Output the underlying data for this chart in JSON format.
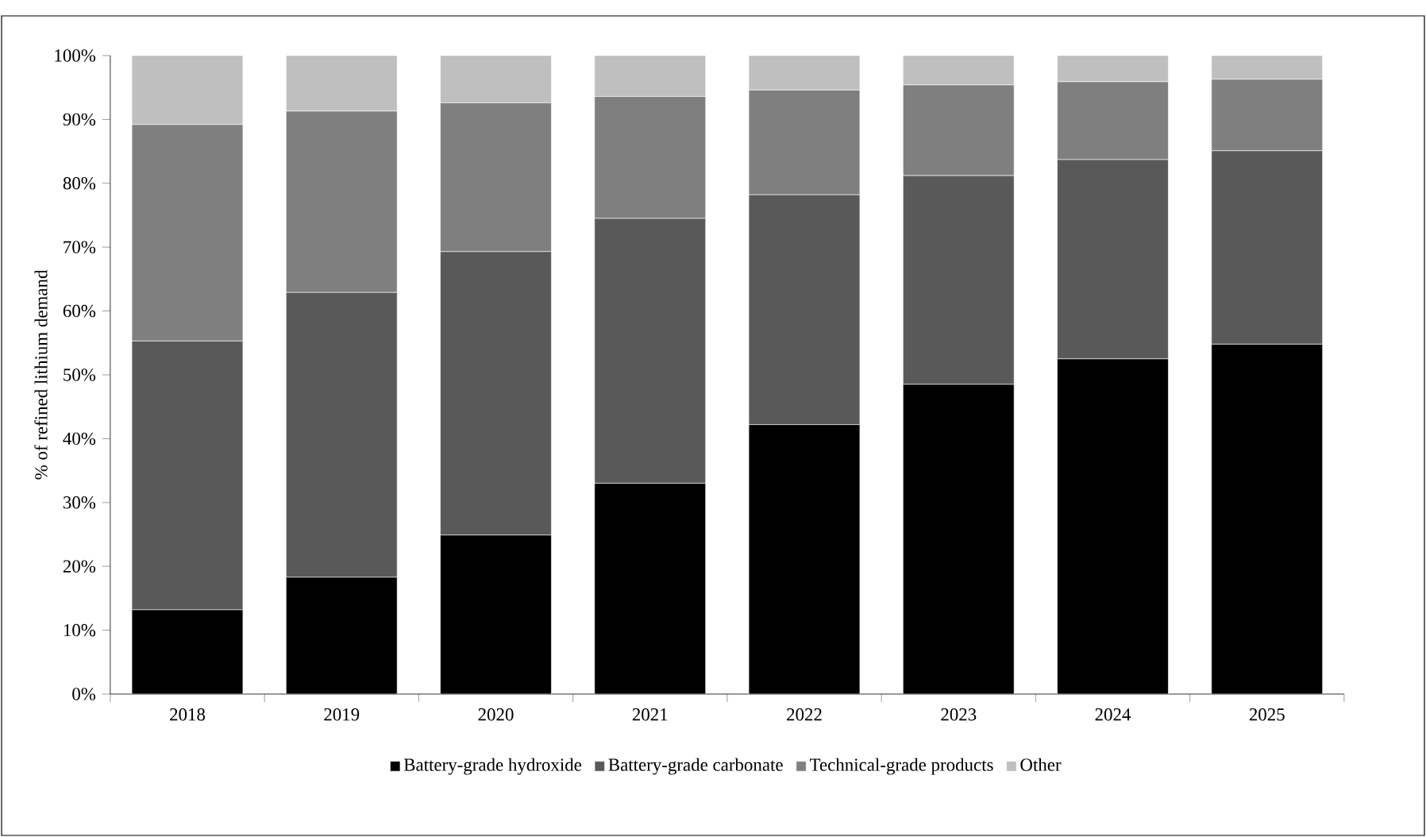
{
  "chart_data": {
    "type": "bar",
    "stacked": true,
    "ylabel": "% of refined lithium demand",
    "categories": [
      "2018",
      "2019",
      "2020",
      "2021",
      "2022",
      "2023",
      "2024",
      "2025"
    ],
    "series": [
      {
        "name": "Battery-grade hydroxide",
        "color": "#000000",
        "values": [
          13.2,
          18.3,
          24.9,
          33.0,
          42.2,
          48.5,
          52.5,
          54.8
        ]
      },
      {
        "name": "Battery-grade carbonate",
        "color": "#595959",
        "values": [
          42.1,
          44.6,
          44.4,
          41.5,
          36.0,
          32.7,
          31.2,
          30.3
        ]
      },
      {
        "name": "Technical-grade products",
        "color": "#7f7f7f",
        "values": [
          33.9,
          28.4,
          23.3,
          19.1,
          16.4,
          14.2,
          12.2,
          11.2
        ]
      },
      {
        "name": "Other",
        "color": "#bfbfbf",
        "values": [
          10.8,
          8.7,
          7.4,
          6.4,
          5.4,
          4.6,
          4.1,
          3.7
        ]
      }
    ],
    "ylim": [
      0,
      100
    ],
    "yticks": [
      {
        "value": 0,
        "label": "0%"
      },
      {
        "value": 10,
        "label": "10%"
      },
      {
        "value": 20,
        "label": "20%"
      },
      {
        "value": 30,
        "label": "30%"
      },
      {
        "value": 40,
        "label": "40%"
      },
      {
        "value": 50,
        "label": "50%"
      },
      {
        "value": 60,
        "label": "60%"
      },
      {
        "value": 70,
        "label": "70%"
      },
      {
        "value": 80,
        "label": "80%"
      },
      {
        "value": 90,
        "label": "90%"
      },
      {
        "value": 100,
        "label": "100%"
      }
    ],
    "grid": false,
    "legend": "bottom"
  }
}
